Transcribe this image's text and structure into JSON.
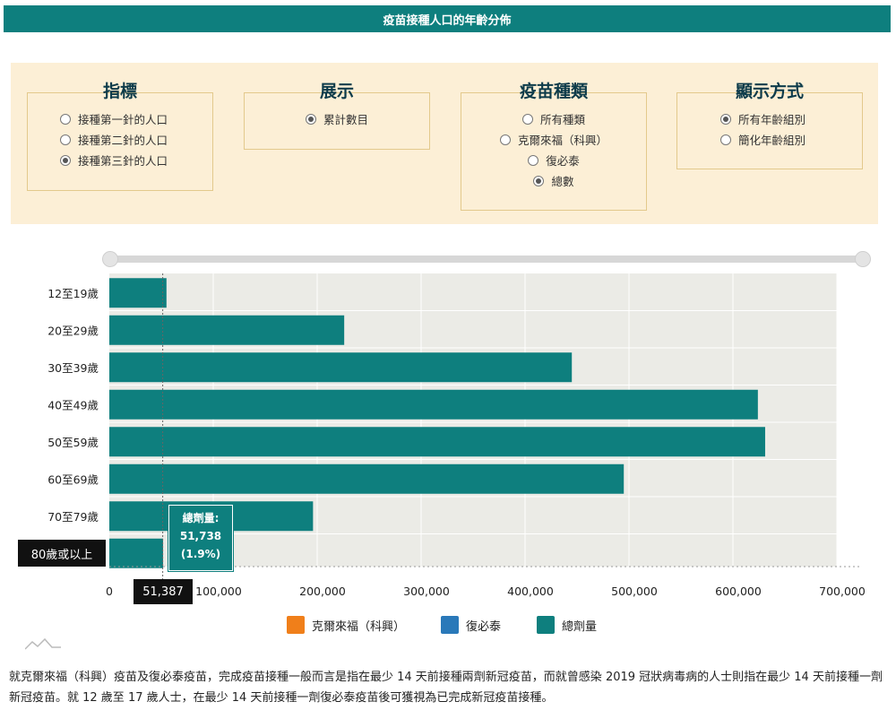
{
  "title": "疫苗接種人口的年齡分佈",
  "filters": {
    "indicator": {
      "title": "指標",
      "options": [
        "接種第一針的人口",
        "接種第二針的人口",
        "接種第三針的人口"
      ],
      "selected": 2
    },
    "display": {
      "title": "展示",
      "options": [
        "累計數目"
      ],
      "selected": 0
    },
    "vaccine": {
      "title": "疫苗種類",
      "options": [
        "所有種類",
        "克爾來福（科興）",
        "復必泰",
        "總數"
      ],
      "selected": 3
    },
    "mode": {
      "title": "顯示方式",
      "options": [
        "所有年齡組別",
        "簡化年齡組別"
      ],
      "selected": 0
    }
  },
  "chart_data": {
    "type": "bar",
    "orientation": "horizontal",
    "categories": [
      "12至19歲",
      "20至29歲",
      "30至39歲",
      "40至49歲",
      "50至59歲",
      "60至69歲",
      "70至79歲",
      "80歲或以上"
    ],
    "series": [
      {
        "name": "總劑量",
        "color": "#0e7f7e",
        "values": [
          55000,
          226000,
          445000,
          624000,
          631000,
          495000,
          196000,
          51738
        ]
      }
    ],
    "xlim": [
      0,
      700000
    ],
    "xticks": [
      "0",
      "100,000",
      "200,000",
      "300,000",
      "400,000",
      "500,000",
      "600,000",
      "700,000"
    ],
    "cursor_value": "51,387",
    "highlighted_category": "80歲或以上",
    "tooltip": {
      "label": "總劑量:",
      "value": "51,738",
      "percent": "(1.9%)"
    },
    "legend": [
      {
        "name": "克爾來福（科興）",
        "color": "#f07f1a"
      },
      {
        "name": "復必泰",
        "color": "#2a79b9"
      },
      {
        "name": "總劑量",
        "color": "#0e7f7e"
      }
    ],
    "legend_position": "bottom"
  },
  "footnote": "就克爾來福（科興）疫苗及復必泰疫苗，完成疫苗接種一般而言是指在最少 14 天前接種兩劑新冠疫苗，而就曾感染 2019 冠狀病毒病的人士則指在最少 14 天前接種一劑新冠疫苗。就 12 歲至 17 歲人士，在最少 14 天前接種一劑復必泰疫苗後可獲視為已完成新冠疫苗接種。"
}
